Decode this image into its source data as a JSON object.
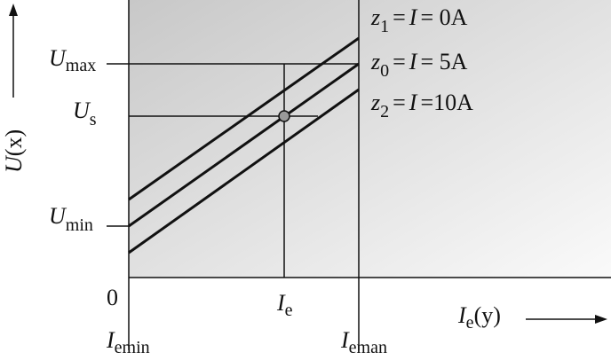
{
  "y_axis": {
    "var": "U",
    "arg": "(x)"
  },
  "x_axis": {
    "var": "I",
    "sub": "e",
    "arg": "(y)"
  },
  "origin": "0",
  "y_levels": {
    "max": {
      "var": "U",
      "sub": "max"
    },
    "s": {
      "var": "U",
      "sub": "s"
    },
    "min": {
      "var": "U",
      "sub": "min"
    }
  },
  "x_levels": {
    "emin": {
      "var": "I",
      "sub": "emin"
    },
    "e": {
      "var": "I",
      "sub": "e"
    },
    "eman": {
      "var": "I",
      "sub": "eman"
    }
  },
  "curves": [
    {
      "var": "z",
      "sub": "1",
      "eq": "=",
      "cur": "I",
      "val": "= 0A"
    },
    {
      "var": "z",
      "sub": "0",
      "eq": "=",
      "cur": "I",
      "val": "= 5A"
    },
    {
      "var": "z",
      "sub": "2",
      "eq": "=",
      "cur": "I",
      "val": "=10A"
    }
  ]
}
